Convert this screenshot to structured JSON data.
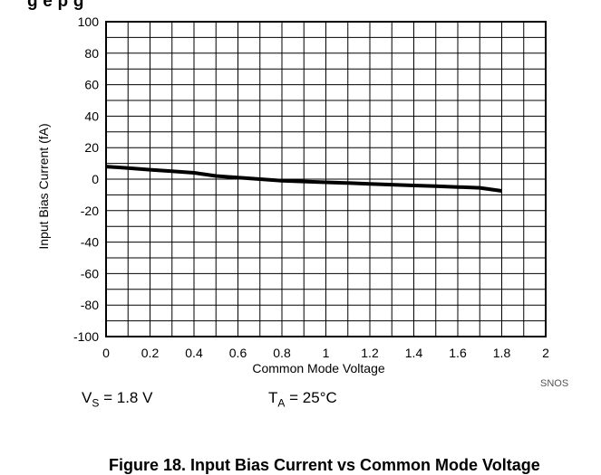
{
  "header_fragment": "g   e   p                                                              g",
  "chart_data": {
    "type": "line",
    "xlabel": "Common Mode Voltage",
    "ylabel": "Input Bias Current (fA)",
    "xlim": [
      0,
      2
    ],
    "ylim": [
      -100,
      100
    ],
    "x_ticks": [
      "0",
      "0.2",
      "0.4",
      "0.6",
      "0.8",
      "1",
      "1.2",
      "1.4",
      "1.6",
      "1.8",
      "2"
    ],
    "y_ticks": [
      "100",
      "80",
      "60",
      "40",
      "20",
      "0",
      "-20",
      "-40",
      "-60",
      "-80",
      "-100"
    ],
    "grid": true,
    "series": [
      {
        "x": [
          0,
          0.1,
          0.2,
          0.3,
          0.4,
          0.5,
          0.6,
          0.7,
          0.8,
          0.9,
          1.0,
          1.1,
          1.2,
          1.3,
          1.4,
          1.5,
          1.6,
          1.7,
          1.8
        ],
        "y": [
          8,
          7,
          6,
          5,
          4,
          2,
          1,
          0,
          -1,
          -1.5,
          -2,
          -2.5,
          -3,
          -3.5,
          -4,
          -4.5,
          -5,
          -5.5,
          -7.5
        ]
      }
    ],
    "code": "SNOS"
  },
  "conditions": {
    "vs_main": "V",
    "vs_sub": "S",
    "vs_value": " = 1.8 V",
    "ta_main": "T",
    "ta_sub": "A",
    "ta_value": " = 25°C"
  },
  "caption": "Figure 18. Input Bias Current vs Common Mode Voltage"
}
